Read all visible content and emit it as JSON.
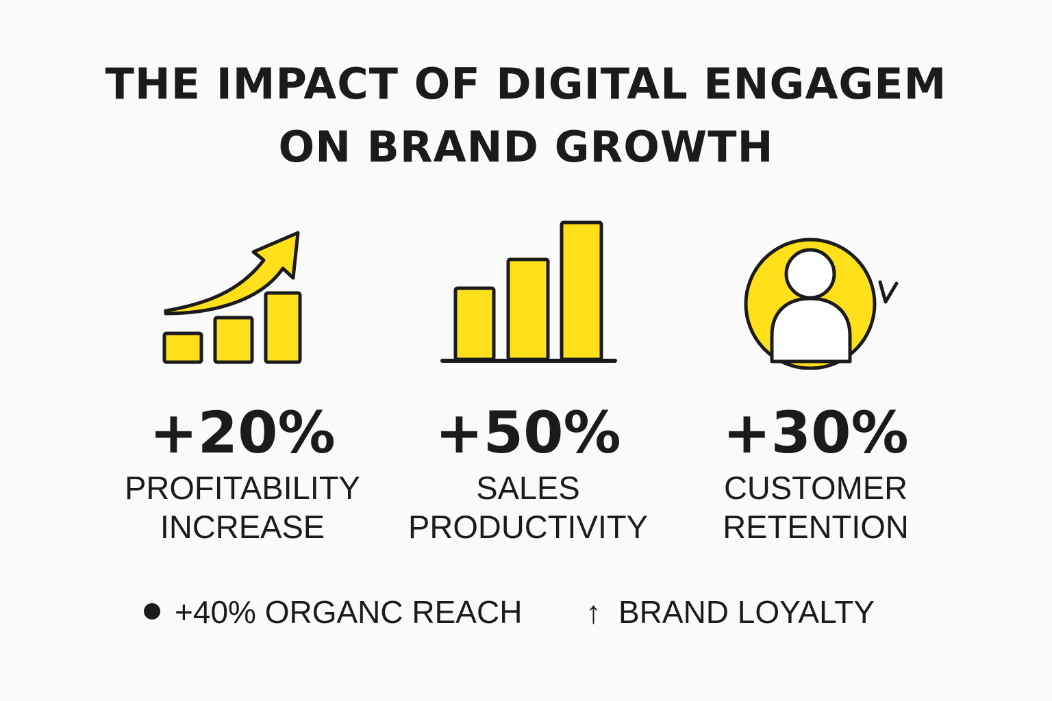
{
  "title": {
    "line1": "THE IMPACT OF DIGITAL ENGAGEM",
    "line2": "ON BRAND GROWTH"
  },
  "stats": [
    {
      "value": "+20%",
      "label_line1": "PROFITABILITY",
      "label_line2": "INCREASE",
      "icon": "rising-bars-arrow-icon"
    },
    {
      "value": "+50%",
      "label_line1": "SALES",
      "label_line2": "PRODUCTIVITY",
      "icon": "bar-chart-icon"
    },
    {
      "value": "+30%",
      "label_line1": "CUSTOMER",
      "label_line2": "RETENTION",
      "icon": "user-cycle-icon"
    }
  ],
  "footer": {
    "item1": "+40% ORGANC REACH",
    "item2_arrow": "↑",
    "item2": "BRAND LOYALTY"
  },
  "colors": {
    "accent": "#FFE01B",
    "ink": "#1B1B1B",
    "background": "#FAFAFA"
  }
}
